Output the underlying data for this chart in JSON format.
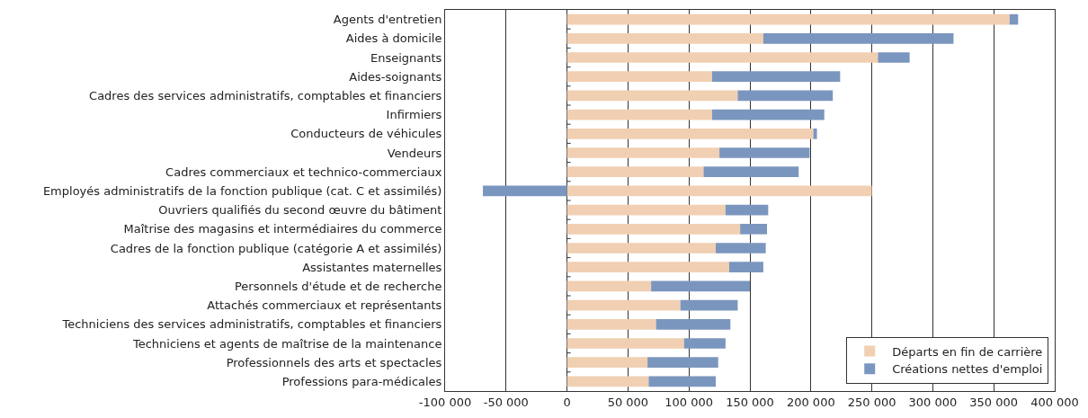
{
  "chart_data": {
    "type": "bar",
    "orientation": "horizontal",
    "stacked": true,
    "categories": [
      "Agents d'entretien",
      "Aides à domicile",
      "Enseignants",
      "Aides-soignants",
      "Cadres des services administratifs, comptables et financiers",
      "Infirmiers",
      "Conducteurs de véhicules",
      "Vendeurs",
      "Cadres commerciaux et technico-commerciaux",
      "Employés administratifs de la fonction publique (cat. C et assimilés)",
      "Ouvriers qualifiés du second œuvre du bâtiment",
      "Maîtrise des magasins et intermédiaires du commerce",
      "Cadres de la fonction publique (catégorie A et assimilés)",
      "Assistantes maternelles",
      "Personnels d'étude et de recherche",
      "Attachés commerciaux et représentants",
      "Techniciens des services administratifs, comptables et financiers",
      "Techniciens et agents de maîtrise de la maintenance",
      "Professionnels des arts et spectacles",
      "Professions para-médicales"
    ],
    "series": [
      {
        "name": "Départs en fin de carrière",
        "color": "#f1cfb2",
        "values": [
          363000,
          161000,
          255000,
          119000,
          140000,
          119000,
          202000,
          125000,
          112000,
          250000,
          130000,
          142000,
          122000,
          133000,
          69000,
          93000,
          73000,
          96000,
          66000,
          67000
        ]
      },
      {
        "name": "Créations nettes d'emploi",
        "color": "#7b96be",
        "values": [
          7000,
          156000,
          26000,
          105000,
          78000,
          92000,
          3000,
          74000,
          78000,
          -69000,
          35000,
          22000,
          41000,
          28000,
          81000,
          47000,
          61000,
          34000,
          58000,
          55000
        ]
      }
    ],
    "xlim": [
      -100000,
      400000
    ],
    "xticks": [
      {
        "value": -100000,
        "label": "-100 000"
      },
      {
        "value": -50000,
        "label": "-50 000"
      },
      0,
      {
        "value": 50000,
        "label": "50 000"
      },
      {
        "value": 100000,
        "label": "100 000"
      },
      {
        "value": 150000,
        "label": "150 000"
      },
      {
        "value": 200000,
        "label": "200 000"
      },
      {
        "value": 250000,
        "label": "250 000"
      },
      {
        "value": 300000,
        "label": "300 000"
      },
      {
        "value": 350000,
        "label": "350 000"
      },
      {
        "value": 400000,
        "label": "400 000"
      }
    ],
    "grid": "x",
    "legend": "bottom right"
  }
}
